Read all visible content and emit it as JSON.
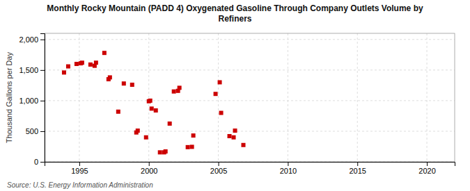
{
  "chart_data": {
    "type": "scatter",
    "title": "Monthly Rocky Mountain (PADD 4) Oxygenated Gasoline Through Company Outlets Volume by\nRefiners",
    "ylabel": "Thousand Gallons per Day",
    "annotations": [
      "Source: U.S. Energy Information Administration"
    ],
    "x": [
      1993.9,
      1994.2,
      1994.8,
      1995.1,
      1995.2,
      1995.8,
      1996.1,
      1996.2,
      1996.8,
      1997.1,
      1997.2,
      1997.8,
      1998.2,
      1998.8,
      1999.1,
      1999.2,
      1999.8,
      2000.0,
      2000.1,
      2000.2,
      2000.5,
      2000.8,
      2001.1,
      2001.2,
      2001.5,
      2001.8,
      2002.1,
      2002.2,
      2002.8,
      2003.1,
      2003.2,
      2004.8,
      2005.1,
      2005.2,
      2005.8,
      2006.1,
      2006.2,
      2006.8
    ],
    "values": [
      1460,
      1560,
      1600,
      1610,
      1620,
      1590,
      1570,
      1620,
      1780,
      1350,
      1380,
      820,
      1280,
      1260,
      480,
      510,
      400,
      990,
      1000,
      870,
      840,
      155,
      155,
      170,
      625,
      1150,
      1160,
      1210,
      240,
      245,
      430,
      1110,
      1300,
      800,
      420,
      400,
      510,
      275
    ],
    "color": "#cc0000",
    "marker": "square",
    "xlim": [
      1992.5,
      2022
    ],
    "ylim": [
      0,
      2100
    ],
    "xticks": [
      1995,
      2000,
      2005,
      2010,
      2015,
      2020
    ],
    "yticks": [
      0,
      500,
      {
        "value": 1000,
        "label": "1,000"
      },
      {
        "value": 1500,
        "label": "1,500"
      },
      {
        "value": 2000,
        "label": "2,000"
      }
    ],
    "grid": true
  }
}
